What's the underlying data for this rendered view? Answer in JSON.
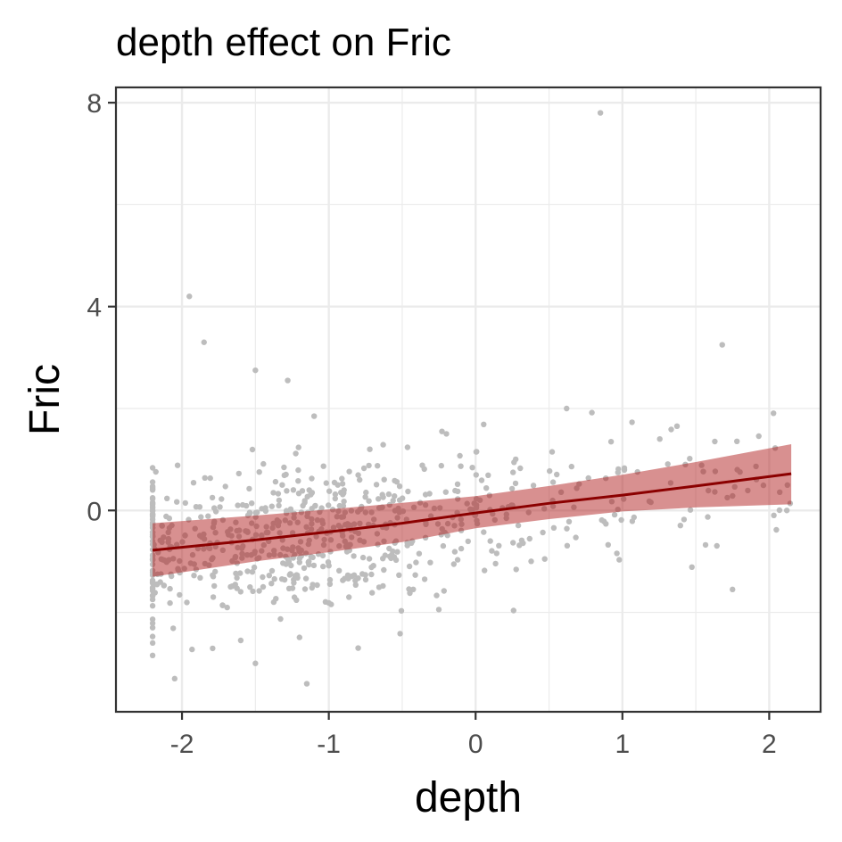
{
  "chart_data": {
    "type": "scatter",
    "title": "depth effect on Fric",
    "xlabel": "depth",
    "ylabel": "Fric",
    "xlim": [
      -2.45,
      2.35
    ],
    "ylim": [
      -3.95,
      8.3
    ],
    "x_ticks": [
      -2,
      -1,
      0,
      1,
      2
    ],
    "y_ticks": [
      0,
      4,
      8
    ],
    "x_tick_labels": [
      "-2",
      "-1",
      "0",
      "1",
      "2"
    ],
    "y_tick_labels": [
      "0",
      "4",
      "8"
    ],
    "grid": true,
    "legend": "none",
    "colors": {
      "points": "#bdbdbd",
      "fit_line": "#8b0000",
      "ribbon": "#b22222",
      "panel_border": "#333333",
      "grid": "#ebebeb"
    },
    "fit": {
      "x": [
        -2.2,
        -1.5,
        -1.0,
        -0.5,
        0.0,
        0.5,
        1.0,
        1.5,
        2.15
      ],
      "y": [
        -0.78,
        -0.58,
        -0.42,
        -0.25,
        -0.05,
        0.14,
        0.3,
        0.48,
        0.72
      ],
      "lower": [
        -1.3,
        -1.0,
        -0.82,
        -0.62,
        -0.35,
        -0.17,
        -0.02,
        0.06,
        0.12
      ],
      "upper": [
        -0.25,
        -0.1,
        0.02,
        0.15,
        0.28,
        0.48,
        0.7,
        0.95,
        1.3
      ]
    },
    "outliers": [
      {
        "x": 0.85,
        "y": 7.8
      },
      {
        "x": -1.95,
        "y": 4.2
      },
      {
        "x": -1.85,
        "y": 3.3
      },
      {
        "x": 1.68,
        "y": 3.25
      },
      {
        "x": -1.5,
        "y": 2.75
      },
      {
        "x": -1.28,
        "y": 2.55
      },
      {
        "x": 0.62,
        "y": 2.0
      },
      {
        "x": -1.1,
        "y": 1.85
      },
      {
        "x": -1.15,
        "y": -3.4
      },
      {
        "x": -2.05,
        "y": -3.3
      },
      {
        "x": -1.5,
        "y": -3.0
      },
      {
        "x": -1.6,
        "y": -2.55
      },
      {
        "x": -2.2,
        "y": -2.6
      },
      {
        "x": -0.8,
        "y": -2.7
      },
      {
        "x": 1.75,
        "y": -1.55
      },
      {
        "x": 2.12,
        "y": 0.0
      }
    ],
    "cloud": {
      "n": 720,
      "x_range": [
        -2.2,
        2.15
      ],
      "sd": 0.72,
      "seed": 7
    }
  }
}
